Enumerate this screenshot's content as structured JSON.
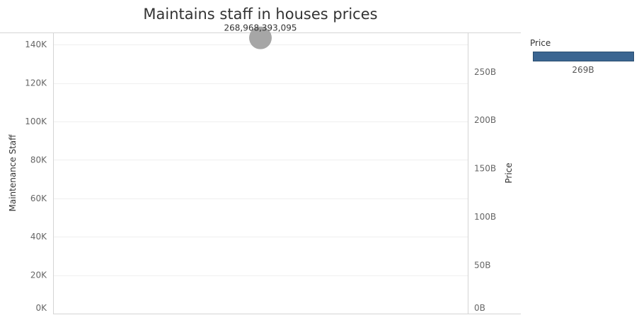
{
  "chart_data": {
    "type": "scatter",
    "title": "Maintains staff in houses prices",
    "left_axis": {
      "label": "Maintenance Staff",
      "ylim": [
        0,
        150000
      ],
      "ticks": [
        0,
        20000,
        40000,
        60000,
        80000,
        100000,
        120000,
        140000
      ],
      "tick_labels": [
        "0K",
        "20K",
        "40K",
        "60K",
        "80K",
        "100K",
        "120K",
        "140K"
      ]
    },
    "right_axis": {
      "label": "Price",
      "ylim": [
        0,
        290000000000
      ],
      "ticks": [
        0,
        50000000000,
        100000000000,
        150000000000,
        200000000000,
        250000000000
      ],
      "tick_labels": [
        "0B",
        "50B",
        "100B",
        "150B",
        "200B",
        "250B"
      ]
    },
    "points": [
      {
        "maintenance_staff": 143500,
        "price": 268968393095,
        "label": "268,968,393,095"
      }
    ],
    "grid": true,
    "legend": {
      "title": "Price",
      "value_label": "269B",
      "placement": "right"
    },
    "colors": {
      "point": "#a6a6a6",
      "legend_bar": "#3a6591",
      "gridline": "#efefef",
      "axis": "#d4d4d4"
    }
  }
}
